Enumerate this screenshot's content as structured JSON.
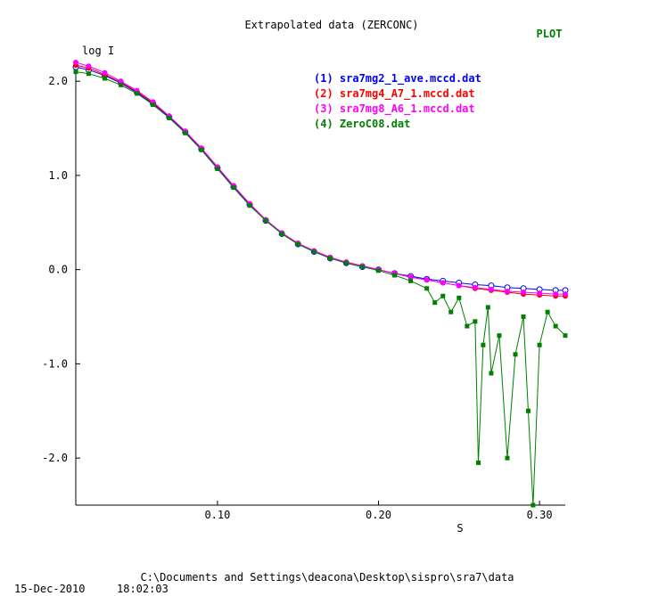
{
  "window": {
    "title": "Extrapolated data (ZERCONC)",
    "plot_tag": "PLOT",
    "path": "C:\\Documents and Settings\\deacona\\Desktop\\sispro\\sra7\\data",
    "date": "15-Dec-2010",
    "time": "18:02:03"
  },
  "colors": {
    "title": "#000000",
    "plot_tag": "#008000",
    "axis": "#000000",
    "series_1": "#0000ff",
    "series_2": "#ff0000",
    "series_3": "#ff00ff",
    "series_4": "#008000"
  },
  "chart_data": {
    "type": "line",
    "title": "Extrapolated data (ZERCONC)",
    "xlabel": "S",
    "ylabel": "log I",
    "xlim": [
      0.012,
      0.316
    ],
    "ylim": [
      -2.5,
      2.2
    ],
    "x_ticks": [
      0.1,
      0.2,
      0.3
    ],
    "x_tick_labels": [
      "0.10",
      "0.20",
      "0.30"
    ],
    "y_ticks": [
      2.0,
      1.0,
      0.0,
      -1.0,
      -2.0
    ],
    "y_tick_labels": [
      "2.0",
      "1.0",
      "0.0",
      "-1.0",
      "-2.0"
    ],
    "grid": false,
    "legend_position": "top-right",
    "series": [
      {
        "name": "(1) sra7mg2_1_ave.mccd.dat",
        "marker": "open-circle",
        "x": [
          0.012,
          0.02,
          0.03,
          0.04,
          0.05,
          0.06,
          0.07,
          0.08,
          0.09,
          0.1,
          0.11,
          0.12,
          0.13,
          0.14,
          0.15,
          0.16,
          0.17,
          0.18,
          0.19,
          0.2,
          0.21,
          0.22,
          0.23,
          0.24,
          0.25,
          0.26,
          0.27,
          0.28,
          0.29,
          0.3,
          0.31,
          0.316
        ],
        "y": [
          2.15,
          2.12,
          2.06,
          1.98,
          1.88,
          1.76,
          1.62,
          1.46,
          1.28,
          1.08,
          0.88,
          0.69,
          0.52,
          0.38,
          0.27,
          0.19,
          0.12,
          0.07,
          0.03,
          0.0,
          -0.04,
          -0.07,
          -0.1,
          -0.12,
          -0.14,
          -0.16,
          -0.17,
          -0.19,
          -0.2,
          -0.21,
          -0.22,
          -0.22
        ]
      },
      {
        "name": "(2) sra7mg4_A7_1.mccd.dat",
        "marker": "filled-circle",
        "x": [
          0.012,
          0.02,
          0.03,
          0.04,
          0.05,
          0.06,
          0.07,
          0.08,
          0.09,
          0.1,
          0.11,
          0.12,
          0.13,
          0.14,
          0.15,
          0.16,
          0.17,
          0.18,
          0.19,
          0.2,
          0.21,
          0.22,
          0.23,
          0.24,
          0.25,
          0.26,
          0.27,
          0.28,
          0.29,
          0.3,
          0.31,
          0.316
        ],
        "y": [
          2.17,
          2.14,
          2.07,
          1.99,
          1.89,
          1.77,
          1.63,
          1.47,
          1.29,
          1.09,
          0.89,
          0.7,
          0.53,
          0.39,
          0.28,
          0.2,
          0.13,
          0.08,
          0.04,
          0.0,
          -0.04,
          -0.08,
          -0.11,
          -0.14,
          -0.17,
          -0.2,
          -0.22,
          -0.24,
          -0.26,
          -0.27,
          -0.28,
          -0.28
        ]
      },
      {
        "name": "(3) sra7mg8_A6_1.mccd.dat",
        "marker": "filled-circle",
        "x": [
          0.012,
          0.02,
          0.03,
          0.04,
          0.05,
          0.06,
          0.07,
          0.08,
          0.09,
          0.1,
          0.11,
          0.12,
          0.13,
          0.14,
          0.15,
          0.16,
          0.17,
          0.18,
          0.19,
          0.2,
          0.21,
          0.22,
          0.23,
          0.24,
          0.25,
          0.26,
          0.27,
          0.28,
          0.29,
          0.3,
          0.31,
          0.316
        ],
        "y": [
          2.2,
          2.16,
          2.09,
          2.0,
          1.9,
          1.78,
          1.63,
          1.47,
          1.29,
          1.09,
          0.89,
          0.7,
          0.53,
          0.39,
          0.28,
          0.2,
          0.13,
          0.08,
          0.04,
          0.0,
          -0.04,
          -0.08,
          -0.11,
          -0.14,
          -0.17,
          -0.19,
          -0.21,
          -0.23,
          -0.24,
          -0.25,
          -0.26,
          -0.26
        ]
      },
      {
        "name": "(4) ZeroC08.dat",
        "marker": "filled-square",
        "x": [
          0.012,
          0.02,
          0.03,
          0.04,
          0.05,
          0.06,
          0.07,
          0.08,
          0.09,
          0.1,
          0.11,
          0.12,
          0.13,
          0.14,
          0.15,
          0.16,
          0.17,
          0.18,
          0.19,
          0.2,
          0.21,
          0.22,
          0.23,
          0.235,
          0.24,
          0.245,
          0.25,
          0.255,
          0.26,
          0.262,
          0.265,
          0.268,
          0.27,
          0.275,
          0.28,
          0.285,
          0.29,
          0.293,
          0.296,
          0.3,
          0.305,
          0.31,
          0.316
        ],
        "y": [
          2.1,
          2.08,
          2.03,
          1.96,
          1.87,
          1.75,
          1.61,
          1.45,
          1.27,
          1.07,
          0.87,
          0.68,
          0.52,
          0.38,
          0.27,
          0.19,
          0.12,
          0.07,
          0.03,
          -0.01,
          -0.06,
          -0.12,
          -0.2,
          -0.35,
          -0.28,
          -0.45,
          -0.3,
          -0.6,
          -0.55,
          -2.05,
          -0.8,
          -0.4,
          -1.1,
          -0.7,
          -2.0,
          -0.9,
          -0.5,
          -1.5,
          -2.5,
          -0.8,
          -0.45,
          -0.6,
          -0.7
        ]
      }
    ]
  }
}
